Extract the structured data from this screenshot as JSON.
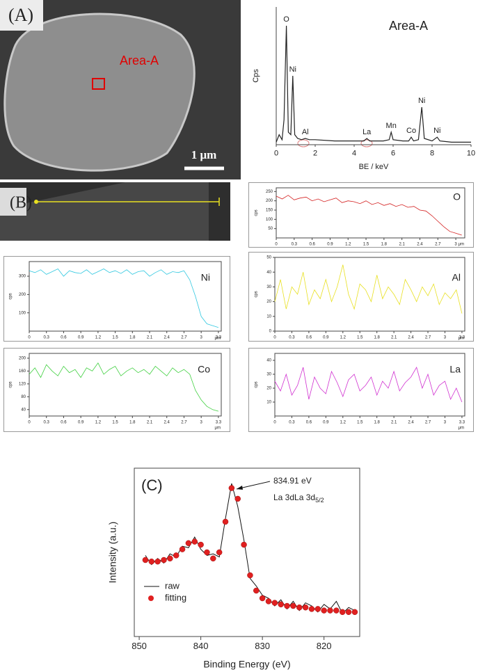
{
  "images": [
    {
      "label": "(A)",
      "annotation": "Area-A",
      "scale_bar": "1 μm"
    },
    {
      "label": "(B)"
    }
  ],
  "chart_data": [
    {
      "type": "line",
      "title": "Area-A",
      "xlabel": "BE / keV",
      "ylabel": "Cps",
      "x": [
        0,
        0.15,
        0.3,
        0.4,
        0.52,
        0.62,
        0.75,
        0.85,
        0.95,
        1.1,
        1.3,
        1.49,
        1.7,
        2,
        3,
        4,
        4.5,
        4.65,
        4.8,
        5.5,
        5.8,
        5.9,
        6.0,
        6.5,
        6.8,
        6.93,
        7.05,
        7.3,
        7.47,
        7.6,
        8.0,
        8.26,
        8.4,
        9,
        10
      ],
      "series": [
        {
          "color": "#222222",
          "values": [
            2,
            8,
            4,
            20,
            95,
            10,
            8,
            55,
            8,
            5,
            4,
            5,
            4,
            4,
            3,
            3,
            3,
            5,
            3,
            3,
            4,
            10,
            4,
            3,
            3,
            6,
            3,
            4,
            30,
            5,
            3,
            6,
            3,
            2,
            2
          ]
        }
      ],
      "xlim": [
        0,
        10
      ],
      "xticks": [
        0,
        2,
        4,
        6,
        8,
        10
      ],
      "ylim": [
        0,
        110
      ],
      "annotations": [
        {
          "text": "O",
          "x": 0.52
        },
        {
          "text": "Ni",
          "x": 0.85
        },
        {
          "text": "Al",
          "x": 1.49
        },
        {
          "text": "La",
          "x": 4.65
        },
        {
          "text": "Mn",
          "x": 5.9
        },
        {
          "text": "Co",
          "x": 6.93
        },
        {
          "text": "Ni",
          "x": 7.47
        },
        {
          "text": "Ni",
          "x": 8.26
        }
      ]
    },
    {
      "type": "line",
      "title": "O",
      "xlabel": "μm",
      "ylabel": "cps",
      "x": [
        0,
        0.1,
        0.2,
        0.3,
        0.4,
        0.5,
        0.6,
        0.7,
        0.8,
        0.9,
        1.0,
        1.1,
        1.2,
        1.3,
        1.4,
        1.5,
        1.6,
        1.7,
        1.8,
        1.9,
        2.0,
        2.1,
        2.2,
        2.3,
        2.4,
        2.5,
        2.6,
        2.7,
        2.8,
        2.9,
        3.0,
        3.1
      ],
      "series": [
        {
          "color": "#d42020",
          "values": [
            225,
            210,
            230,
            205,
            215,
            220,
            200,
            210,
            195,
            205,
            215,
            190,
            200,
            195,
            185,
            200,
            180,
            190,
            175,
            185,
            170,
            180,
            165,
            170,
            150,
            145,
            120,
            90,
            60,
            35,
            25,
            15
          ]
        }
      ],
      "xlim": [
        0,
        3.15
      ],
      "xticks": [
        0,
        0.3,
        0.6,
        0.9,
        1.2,
        1.5,
        1.8,
        2.1,
        2.4,
        2.7,
        3
      ],
      "ylim": [
        0,
        270
      ],
      "yticks": [
        50,
        100,
        150,
        200,
        250
      ]
    },
    {
      "type": "line",
      "title": "Ni",
      "xlabel": "μm",
      "ylabel": "cps",
      "x": [
        0,
        0.1,
        0.2,
        0.3,
        0.4,
        0.5,
        0.6,
        0.7,
        0.8,
        0.9,
        1.0,
        1.1,
        1.2,
        1.3,
        1.4,
        1.5,
        1.6,
        1.7,
        1.8,
        1.9,
        2.0,
        2.1,
        2.2,
        2.3,
        2.4,
        2.5,
        2.6,
        2.7,
        2.8,
        2.9,
        3.0,
        3.1,
        3.2,
        3.3
      ],
      "series": [
        {
          "color": "#30c8e0",
          "values": [
            330,
            320,
            335,
            310,
            325,
            340,
            300,
            330,
            320,
            315,
            335,
            310,
            325,
            340,
            320,
            330,
            315,
            335,
            310,
            325,
            330,
            300,
            320,
            335,
            310,
            325,
            320,
            330,
            280,
            190,
            80,
            40,
            30,
            20
          ]
        }
      ],
      "xlim": [
        0,
        3.35
      ],
      "xticks": [
        0,
        0.3,
        0.6,
        0.9,
        1.2,
        1.5,
        1.8,
        2.1,
        2.4,
        2.7,
        3,
        3.3
      ],
      "ylim": [
        0,
        380
      ],
      "yticks": [
        100,
        200,
        300
      ]
    },
    {
      "type": "line",
      "title": "Al",
      "xlabel": "μm",
      "ylabel": "cps",
      "x": [
        0,
        0.1,
        0.2,
        0.3,
        0.4,
        0.5,
        0.6,
        0.7,
        0.8,
        0.9,
        1.0,
        1.1,
        1.2,
        1.3,
        1.4,
        1.5,
        1.6,
        1.7,
        1.8,
        1.9,
        2.0,
        2.1,
        2.2,
        2.3,
        2.4,
        2.5,
        2.6,
        2.7,
        2.8,
        2.9,
        3.0,
        3.1,
        3.2,
        3.3
      ],
      "series": [
        {
          "color": "#e8e020",
          "values": [
            20,
            35,
            15,
            30,
            25,
            40,
            18,
            28,
            22,
            35,
            20,
            30,
            45,
            25,
            15,
            32,
            28,
            20,
            38,
            22,
            30,
            25,
            18,
            35,
            28,
            20,
            30,
            24,
            32,
            18,
            26,
            22,
            28,
            12
          ]
        }
      ],
      "xlim": [
        0,
        3.35
      ],
      "xticks": [
        0,
        0.3,
        0.6,
        0.9,
        1.2,
        1.5,
        1.8,
        2.1,
        2.4,
        2.7,
        3,
        3.3
      ],
      "ylim": [
        0,
        50
      ],
      "yticks": [
        0,
        10,
        20,
        30,
        40,
        50
      ]
    },
    {
      "type": "line",
      "title": "Co",
      "xlabel": "μm",
      "ylabel": "cps",
      "x": [
        0,
        0.1,
        0.2,
        0.3,
        0.4,
        0.5,
        0.6,
        0.7,
        0.8,
        0.9,
        1.0,
        1.1,
        1.2,
        1.3,
        1.4,
        1.5,
        1.6,
        1.7,
        1.8,
        1.9,
        2.0,
        2.1,
        2.2,
        2.3,
        2.4,
        2.5,
        2.6,
        2.7,
        2.8,
        2.9,
        3.0,
        3.1,
        3.2,
        3.3
      ],
      "series": [
        {
          "color": "#40d040",
          "values": [
            150,
            170,
            140,
            180,
            160,
            145,
            175,
            155,
            165,
            140,
            170,
            160,
            185,
            150,
            165,
            175,
            145,
            160,
            170,
            155,
            165,
            150,
            175,
            160,
            145,
            170,
            155,
            165,
            150,
            100,
            70,
            50,
            40,
            35
          ]
        }
      ],
      "xlim": [
        0,
        3.35
      ],
      "xticks": [
        0,
        0.3,
        0.6,
        0.9,
        1.2,
        1.5,
        1.8,
        2.1,
        2.4,
        2.7,
        3,
        3.3
      ],
      "ylim": [
        20,
        215
      ],
      "yticks": [
        40,
        80,
        120,
        160,
        200
      ]
    },
    {
      "type": "line",
      "title": "La",
      "xlabel": "μm",
      "ylabel": "cps",
      "x": [
        0,
        0.1,
        0.2,
        0.3,
        0.4,
        0.5,
        0.6,
        0.7,
        0.8,
        0.9,
        1.0,
        1.1,
        1.2,
        1.3,
        1.4,
        1.5,
        1.6,
        1.7,
        1.8,
        1.9,
        2.0,
        2.1,
        2.2,
        2.3,
        2.4,
        2.5,
        2.6,
        2.7,
        2.8,
        2.9,
        3.0,
        3.1,
        3.2,
        3.3
      ],
      "series": [
        {
          "color": "#d030d0",
          "values": [
            25,
            18,
            30,
            15,
            22,
            35,
            12,
            28,
            20,
            16,
            32,
            24,
            14,
            26,
            30,
            18,
            22,
            28,
            15,
            25,
            20,
            32,
            18,
            24,
            28,
            35,
            20,
            30,
            15,
            22,
            25,
            12,
            20,
            10
          ]
        }
      ],
      "xlim": [
        0,
        3.35
      ],
      "xticks": [
        0,
        0.3,
        0.6,
        0.9,
        1.2,
        1.5,
        1.8,
        2.1,
        2.4,
        2.7,
        3,
        3.3
      ],
      "ylim": [
        0,
        45
      ],
      "yticks": [
        10,
        20,
        30,
        40
      ]
    },
    {
      "type": "line",
      "label": "(C)",
      "xlabel": "Binding Energy (eV)",
      "ylabel": "Intensity (a.u.)",
      "x": [
        849,
        848,
        847,
        846,
        845,
        844,
        843,
        842,
        841,
        840,
        839,
        838,
        837,
        836,
        835,
        834,
        833,
        832,
        831,
        830,
        829,
        828,
        827,
        826,
        825,
        824,
        823,
        822,
        821,
        820,
        819,
        818,
        817,
        816,
        815
      ],
      "series": [
        {
          "name": "raw",
          "color": "#111111",
          "style": "line",
          "values": [
            48,
            42,
            46,
            43,
            49,
            47,
            54,
            53,
            60,
            52,
            48,
            49,
            47,
            72,
            95,
            80,
            58,
            33,
            28,
            22,
            20,
            15,
            19,
            13,
            18,
            12,
            17,
            15,
            11,
            16,
            13,
            18,
            10,
            14,
            12
          ]
        },
        {
          "name": "fitting",
          "color": "#e02020",
          "style": "markers",
          "values": [
            45,
            44,
            44,
            45,
            46,
            48,
            52,
            56,
            57,
            55,
            50,
            46,
            50,
            70,
            92,
            85,
            55,
            35,
            25,
            20,
            18,
            17,
            16,
            15,
            15,
            14,
            14,
            13,
            13,
            12,
            12,
            12,
            11,
            11,
            11
          ]
        }
      ],
      "xlim": [
        850.8,
        814.2
      ],
      "xticks": [
        850,
        840,
        830,
        820
      ],
      "ylim": [
        -5,
        105
      ],
      "legend": "lower left",
      "annotations": [
        {
          "text": "834.91 eV"
        },
        {
          "text": "La 3d",
          "sub": "5/2"
        }
      ]
    }
  ]
}
